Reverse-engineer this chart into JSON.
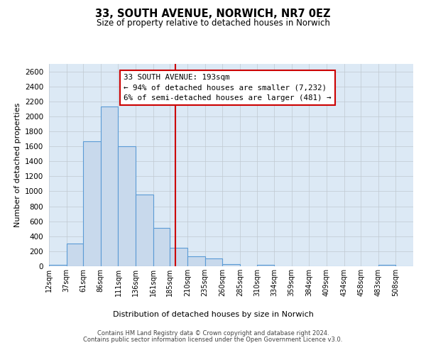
{
  "title": "33, SOUTH AVENUE, NORWICH, NR7 0EZ",
  "subtitle": "Size of property relative to detached houses in Norwich",
  "xlabel": "Distribution of detached houses by size in Norwich",
  "ylabel": "Number of detached properties",
  "bin_labels": [
    "12sqm",
    "37sqm",
    "61sqm",
    "86sqm",
    "111sqm",
    "136sqm",
    "161sqm",
    "185sqm",
    "210sqm",
    "235sqm",
    "260sqm",
    "285sqm",
    "310sqm",
    "334sqm",
    "359sqm",
    "384sqm",
    "409sqm",
    "434sqm",
    "458sqm",
    "483sqm",
    "508sqm"
  ],
  "bin_edges": [
    12,
    37,
    61,
    86,
    111,
    136,
    161,
    185,
    210,
    235,
    260,
    285,
    310,
    334,
    359,
    384,
    409,
    434,
    458,
    483,
    508
  ],
  "bar_heights": [
    20,
    300,
    1670,
    2130,
    1600,
    960,
    510,
    250,
    130,
    100,
    30,
    0,
    15,
    0,
    0,
    0,
    0,
    0,
    0,
    20,
    0
  ],
  "bar_color": "#c8d9ec",
  "bar_edge_color": "#5b9bd5",
  "property_line_x": 193,
  "property_line_color": "#cc0000",
  "ylim": [
    0,
    2700
  ],
  "yticks": [
    0,
    200,
    400,
    600,
    800,
    1000,
    1200,
    1400,
    1600,
    1800,
    2000,
    2200,
    2400,
    2600
  ],
  "annotation_title": "33 SOUTH AVENUE: 193sqm",
  "annotation_line1": "← 94% of detached houses are smaller (7,232)",
  "annotation_line2": "6% of semi-detached houses are larger (481) →",
  "annotation_box_color": "#ffffff",
  "annotation_box_edge": "#cc0000",
  "grid_color": "#c0c8d0",
  "bg_color": "#dce9f5",
  "footer1": "Contains HM Land Registry data © Crown copyright and database right 2024.",
  "footer2": "Contains public sector information licensed under the Open Government Licence v3.0."
}
